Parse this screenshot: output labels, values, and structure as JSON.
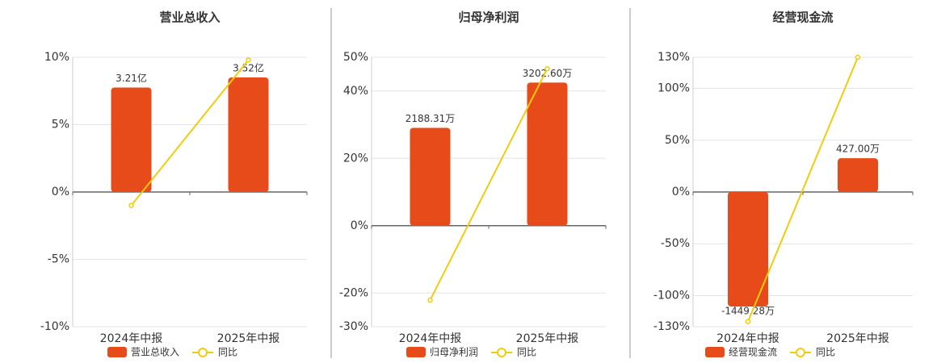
{
  "chart_data": [
    {
      "type": "bar",
      "title": "营业总收入",
      "categories": [
        "2024年中报",
        "2025年中报"
      ],
      "series": [
        {
          "name": "营业总收入",
          "color": "#e84b1a",
          "values": [
            3.21,
            3.52
          ],
          "value_labels": [
            "3.21亿",
            "3.52亿"
          ]
        },
        {
          "name": "同比",
          "type": "line",
          "color": "#f2cc0c",
          "values": [
            -1.0,
            9.8
          ]
        }
      ],
      "ylim": [
        -10,
        10
      ],
      "yticks": [
        {
          "value": -10,
          "label": "-10%"
        },
        {
          "value": -5,
          "label": "-5%"
        },
        {
          "value": 0,
          "label": "0%"
        },
        {
          "value": 5,
          "label": "5%"
        },
        {
          "value": 10,
          "label": "10%"
        }
      ],
      "grid": true
    },
    {
      "type": "bar",
      "title": "归母净利润",
      "categories": [
        "2024年中报",
        "2025年中报"
      ],
      "series": [
        {
          "name": "归母净利润",
          "color": "#e84b1a",
          "values": [
            2188.31,
            3202.6
          ],
          "value_labels": [
            "2188.31万",
            "3202.60万"
          ]
        },
        {
          "name": "同比",
          "type": "line",
          "color": "#f2cc0c",
          "values": [
            -22.1,
            46.6
          ]
        }
      ],
      "ylim": [
        -30,
        50
      ],
      "yticks": [
        {
          "value": -30,
          "label": "-30%"
        },
        {
          "value": -20,
          "label": "-20%"
        },
        {
          "value": 0,
          "label": "0%"
        },
        {
          "value": 20,
          "label": "20%"
        },
        {
          "value": 40,
          "label": "40%"
        },
        {
          "value": 50,
          "label": "50%"
        }
      ],
      "grid": true
    },
    {
      "type": "bar",
      "title": "经营现金流",
      "categories": [
        "2024年中报",
        "2025年中报"
      ],
      "series": [
        {
          "name": "经营现金流",
          "color": "#e84b1a",
          "values": [
            -1449.28,
            427.0
          ],
          "value_labels": [
            "-1449.28万",
            "427.00万"
          ]
        },
        {
          "name": "同比",
          "type": "line",
          "color": "#f2cc0c",
          "values": [
            -125,
            130
          ]
        }
      ],
      "ylim": [
        -130,
        130
      ],
      "yticks": [
        {
          "value": -130,
          "label": "-130%"
        },
        {
          "value": -100,
          "label": "-100%"
        },
        {
          "value": -50,
          "label": "-50%"
        },
        {
          "value": 0,
          "label": "0%"
        },
        {
          "value": 50,
          "label": "50%"
        },
        {
          "value": 100,
          "label": "100%"
        },
        {
          "value": 130,
          "label": "130%"
        }
      ],
      "grid": true
    }
  ]
}
